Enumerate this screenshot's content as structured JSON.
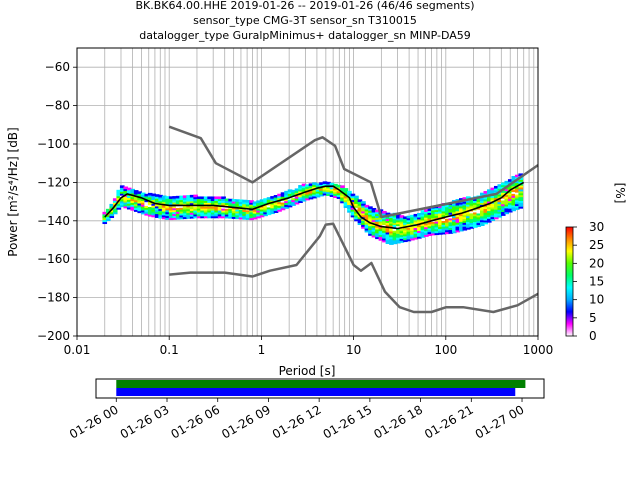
{
  "chart_data": [
    {
      "type": "line",
      "title_lines": [
        "BK.BK64.00.HHE   2019-01-26 -- 2019-01-26  (46/46 segments)",
        "sensor_type CMG-3T sensor_sn T310015",
        "datalogger_type GuralpMinimus+ datalogger_sn MINP-DA59"
      ],
      "xlabel": "Period [s]",
      "ylabel": "Power [m²/s⁴/Hz] [dB]",
      "xscale": "log",
      "xlim": [
        0.01,
        1000
      ],
      "ylim": [
        -200,
        -50
      ],
      "x_ticks": [
        {
          "v": 0.01,
          "label": "0.01"
        },
        {
          "v": 0.1,
          "label": "0.1"
        },
        {
          "v": 1,
          "label": "1"
        },
        {
          "v": 10,
          "label": "10"
        },
        {
          "v": 100,
          "label": "100"
        },
        {
          "v": 1000,
          "label": "1000"
        }
      ],
      "y_ticks": [
        -60,
        -80,
        -100,
        -120,
        -140,
        -160,
        -180,
        -200
      ],
      "grid": true,
      "series": [
        {
          "role": "new-high-noise-model",
          "color": "#666666",
          "points": [
            [
              0.1,
              -91
            ],
            [
              0.22,
              -97
            ],
            [
              0.32,
              -110
            ],
            [
              0.8,
              -120
            ],
            [
              3.8,
              -98
            ],
            [
              4.6,
              -96.5
            ],
            [
              6.3,
              -101
            ],
            [
              7.9,
              -113
            ],
            [
              15.4,
              -120
            ],
            [
              20,
              -138
            ],
            [
              354.8,
              -126
            ],
            [
              1000,
              -111
            ]
          ]
        },
        {
          "role": "new-low-noise-model",
          "color": "#666666",
          "points": [
            [
              0.1,
              -168
            ],
            [
              0.17,
              -167
            ],
            [
              0.4,
              -167
            ],
            [
              0.8,
              -169
            ],
            [
              1.24,
              -166
            ],
            [
              2.4,
              -163
            ],
            [
              4.3,
              -148
            ],
            [
              5.0,
              -142
            ],
            [
              6.0,
              -141.5
            ],
            [
              10,
              -163
            ],
            [
              12,
              -166
            ],
            [
              15.6,
              -162
            ],
            [
              21.9,
              -177
            ],
            [
              31.6,
              -185
            ],
            [
              45,
              -187.5
            ],
            [
              70,
              -187.5
            ],
            [
              101,
              -185
            ],
            [
              154,
              -185
            ],
            [
              328,
              -187.5
            ],
            [
              600,
              -184
            ],
            [
              1000,
              -178
            ]
          ]
        },
        {
          "role": "mean-psd",
          "color": "#000000",
          "points": [
            [
              0.02,
              -138
            ],
            [
              0.025,
              -133
            ],
            [
              0.03,
              -128
            ],
            [
              0.035,
              -126
            ],
            [
              0.05,
              -128
            ],
            [
              0.07,
              -131
            ],
            [
              0.1,
              -132
            ],
            [
              0.2,
              -132
            ],
            [
              0.3,
              -132
            ],
            [
              0.5,
              -133
            ],
            [
              0.8,
              -134
            ],
            [
              1.2,
              -131
            ],
            [
              2,
              -128
            ],
            [
              3,
              -125
            ],
            [
              4,
              -123
            ],
            [
              5,
              -122
            ],
            [
              6,
              -122
            ],
            [
              7,
              -124
            ],
            [
              9,
              -128
            ],
            [
              10,
              -133
            ],
            [
              12,
              -138
            ],
            [
              15,
              -141
            ],
            [
              20,
              -143
            ],
            [
              30,
              -144
            ],
            [
              50,
              -142
            ],
            [
              70,
              -140
            ],
            [
              100,
              -138
            ],
            [
              150,
              -136
            ],
            [
              200,
              -134
            ],
            [
              300,
              -131
            ],
            [
              400,
              -128
            ],
            [
              500,
              -124
            ],
            [
              700,
              -120
            ]
          ]
        }
      ],
      "psd_spread": [
        {
          "period": 0.02,
          "lo": -141,
          "hi": -136
        },
        {
          "period": 0.025,
          "lo": -137,
          "hi": -130
        },
        {
          "period": 0.03,
          "lo": -132,
          "hi": -122
        },
        {
          "period": 0.04,
          "lo": -134,
          "hi": -124
        },
        {
          "period": 0.06,
          "lo": -137,
          "hi": -126
        },
        {
          "period": 0.1,
          "lo": -139,
          "hi": -127
        },
        {
          "period": 0.2,
          "lo": -138,
          "hi": -127
        },
        {
          "period": 0.4,
          "lo": -138,
          "hi": -128
        },
        {
          "period": 0.8,
          "lo": -139,
          "hi": -130
        },
        {
          "period": 1.5,
          "lo": -135,
          "hi": -127
        },
        {
          "period": 3,
          "lo": -129,
          "hi": -121
        },
        {
          "period": 5,
          "lo": -126,
          "hi": -120
        },
        {
          "period": 7,
          "lo": -128,
          "hi": -121
        },
        {
          "period": 10,
          "lo": -138,
          "hi": -126
        },
        {
          "period": 15,
          "lo": -147,
          "hi": -133
        },
        {
          "period": 25,
          "lo": -152,
          "hi": -136
        },
        {
          "period": 40,
          "lo": -150,
          "hi": -138
        },
        {
          "period": 70,
          "lo": -147,
          "hi": -133
        },
        {
          "period": 120,
          "lo": -146,
          "hi": -130
        },
        {
          "period": 250,
          "lo": -142,
          "hi": -126
        },
        {
          "period": 500,
          "lo": -135,
          "hi": -118
        },
        {
          "period": 650,
          "lo": -133,
          "hi": -116
        }
      ],
      "colorbar": {
        "label": "[%]",
        "range": [
          0,
          30
        ],
        "ticks": [
          0,
          5,
          10,
          15,
          20,
          25,
          30
        ],
        "colors": [
          "#ffffff",
          "#ff00ff",
          "#0000ff",
          "#00aaff",
          "#00ffff",
          "#00ff66",
          "#55ff00",
          "#ffff00",
          "#ff8800",
          "#ff0000"
        ]
      }
    },
    {
      "type": "timeline",
      "ticks": [
        "01-26 00",
        "01-26 03",
        "01-26 06",
        "01-26 09",
        "01-26 12",
        "01-26 15",
        "01-26 18",
        "01-26 21",
        "01-27 00"
      ],
      "bars": [
        {
          "role": "data-coverage",
          "color": "#008000",
          "start_hour": 0,
          "end_hour": 24.2
        },
        {
          "role": "psd-coverage",
          "color": "#0000ff",
          "start_hour": 0,
          "end_hour": 23.6
        }
      ],
      "range_hours": [
        -1.2,
        25.3
      ]
    }
  ]
}
